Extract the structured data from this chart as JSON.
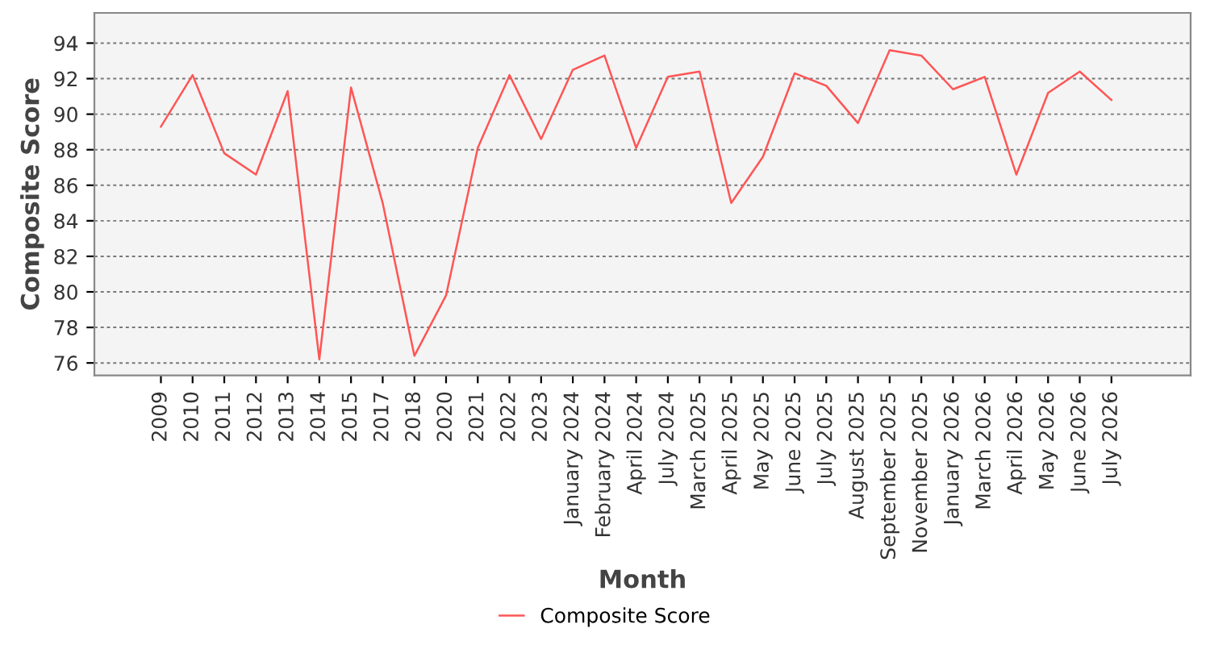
{
  "chart_data": {
    "type": "line",
    "xlabel": "Month",
    "ylabel": "Composite Score",
    "categories": [
      "2009",
      "2010",
      "2011",
      "2012",
      "2013",
      "2014",
      "2015",
      "2017",
      "2018",
      "2020",
      "2021",
      "2022",
      "2023",
      "January 2024",
      "February 2024",
      "April 2024",
      "July 2024",
      "March 2025",
      "April 2025",
      "May 2025",
      "June 2025",
      "July 2025",
      "August 2025",
      "September 2025",
      "November 2025",
      "January 2026",
      "March 2026",
      "April 2026",
      "May 2026",
      "June 2026",
      "July 2026"
    ],
    "series": [
      {
        "name": "Composite Score",
        "color": "#ff5555",
        "values": [
          89.3,
          92.2,
          87.8,
          86.6,
          91.3,
          76.2,
          91.5,
          85.0,
          76.4,
          79.8,
          88.1,
          92.2,
          88.6,
          92.5,
          93.3,
          88.1,
          92.1,
          92.4,
          85.0,
          87.6,
          92.3,
          91.6,
          89.5,
          93.6,
          93.3,
          91.4,
          92.1,
          86.6,
          91.2,
          92.4,
          90.8
        ]
      }
    ],
    "ylim": [
      75.3,
      95.7
    ],
    "yticks": [
      76,
      78,
      80,
      82,
      84,
      86,
      88,
      90,
      92,
      94
    ],
    "grid": "y",
    "legend": "bottom",
    "marker": "none",
    "line_style": "solid"
  }
}
